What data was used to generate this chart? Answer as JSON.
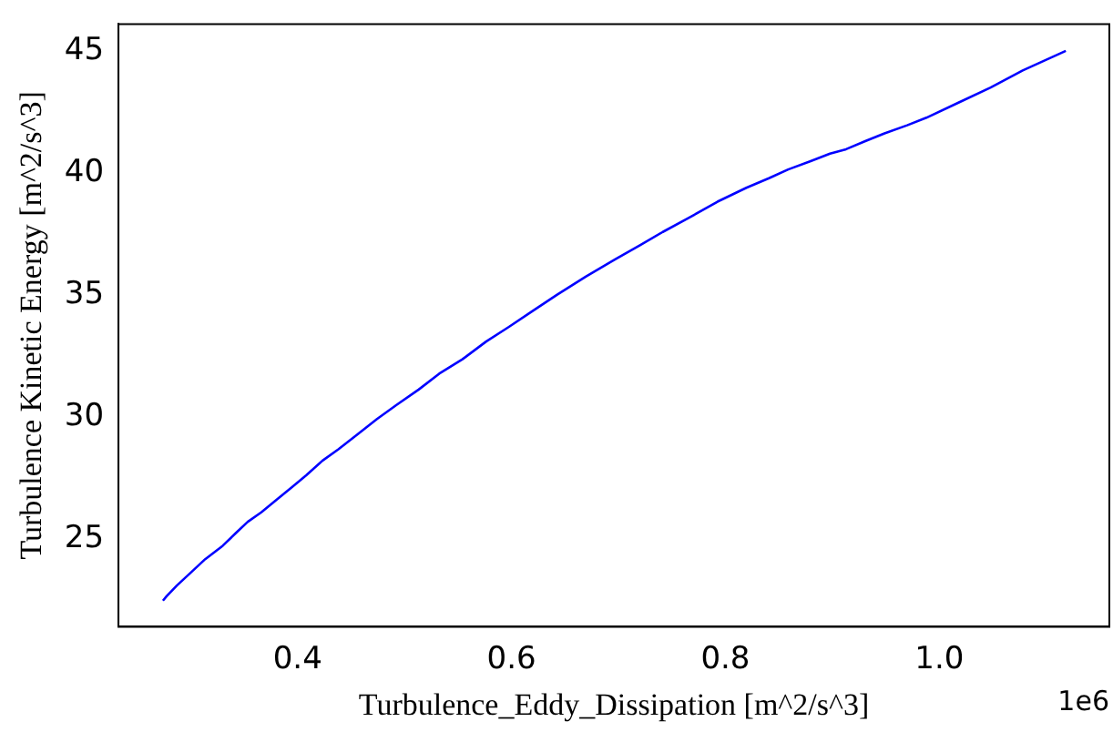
{
  "chart_data": {
    "type": "line",
    "xlabel": "Turbulence_Eddy_Dissipation [m^2/s^3]",
    "ylabel": "Turbulence Kinetic Energy [m^2/s^3]",
    "annotations": [
      "1e6"
    ],
    "x": [
      0.2741,
      0.2775,
      0.2871,
      0.3004,
      0.3136,
      0.33,
      0.342,
      0.3534,
      0.366,
      0.381,
      0.3961,
      0.4081,
      0.4231,
      0.4381,
      0.4561,
      0.4742,
      0.4922,
      0.5132,
      0.5324,
      0.5541,
      0.5763,
      0.5973,
      0.6184,
      0.6424,
      0.6694,
      0.6965,
      0.7205,
      0.7415,
      0.7656,
      0.7926,
      0.8196,
      0.8407,
      0.8587,
      0.8797,
      0.8978,
      0.9128,
      0.9308,
      0.9488,
      0.9699,
      0.9879,
      1.0179,
      1.048,
      1.078,
      1.1183
    ],
    "series": [
      {
        "color": "#0000ff",
        "values": [
          22.47,
          22.65,
          23.09,
          23.63,
          24.17,
          24.72,
          25.23,
          25.7,
          26.09,
          26.63,
          27.17,
          27.61,
          28.2,
          28.67,
          29.29,
          29.91,
          30.48,
          31.12,
          31.77,
          32.36,
          33.09,
          33.68,
          34.3,
          35.0,
          35.75,
          36.45,
          37.04,
          37.58,
          38.15,
          38.82,
          39.39,
          39.78,
          40.14,
          40.48,
          40.79,
          40.97,
          41.3,
          41.62,
          41.95,
          42.26,
          42.88,
          43.5,
          44.2,
          45.0
        ]
      }
    ],
    "xlim": [
      0.2325,
      1.159
    ],
    "xticks": [
      0.4,
      0.6,
      0.8,
      {
        "value": 1.0,
        "label": "1.0"
      }
    ],
    "ylim": [
      21.4,
      46.1
    ],
    "yticks": [
      25,
      30,
      35,
      40,
      45
    ],
    "grid": false,
    "legend": false,
    "marker": "none",
    "line_style": "solid"
  }
}
